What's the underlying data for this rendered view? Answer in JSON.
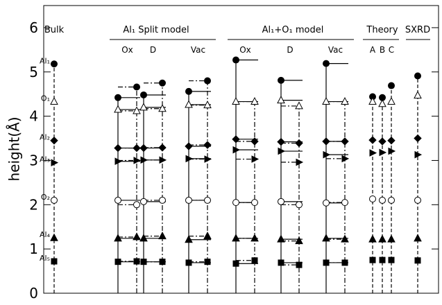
{
  "chart_data": {
    "type": "scatter",
    "ylabel": "height(Å)",
    "ylim": [
      0,
      6.5
    ],
    "yticks": [
      0,
      1,
      2,
      3,
      4,
      5,
      6
    ],
    "layers": [
      "Al₁",
      "O₁",
      "Al₂",
      "Al₃",
      "O₂",
      "Al₄",
      "Al₅"
    ],
    "markers": [
      "filled-circle",
      "open-triangle",
      "filled-diamond",
      "filled-right-triangle",
      "open-circle",
      "filled-triangle",
      "filled-square"
    ],
    "groups": [
      {
        "title": "Bulk",
        "sets": [
          {
            "lines": [
              {
                "style": "dashed",
                "values": [
                  5.18,
                  4.33,
                  3.45,
                  2.95,
                  2.1,
                  1.25,
                  0.72
                ]
              }
            ]
          }
        ]
      },
      {
        "title": "Al₁ Split model",
        "sets": [
          {
            "label": "Ox",
            "lines": [
              {
                "style": "solid",
                "values": [
                  4.42,
                  4.15,
                  3.28,
                  2.98,
                  2.1,
                  1.24,
                  0.71
                ]
              },
              {
                "style": "dashdot",
                "values": [
                  4.66,
                  4.12,
                  3.28,
                  3.0,
                  2.0,
                  1.27,
                  0.72
                ]
              }
            ]
          },
          {
            "label": "D",
            "lines": [
              {
                "style": "solid",
                "values": [
                  4.48,
                  4.2,
                  3.28,
                  3.01,
                  2.07,
                  1.24,
                  0.71
                ]
              },
              {
                "style": "dashdot",
                "values": [
                  4.75,
                  4.17,
                  3.29,
                  3.01,
                  2.1,
                  1.29,
                  0.71
                ]
              }
            ]
          },
          {
            "label": "Vac",
            "lines": [
              {
                "style": "solid",
                "values": [
                  4.56,
                  4.26,
                  3.32,
                  3.04,
                  2.1,
                  1.21,
                  0.69
                ]
              },
              {
                "style": "dashdot",
                "values": [
                  4.8,
                  4.25,
                  3.35,
                  3.03,
                  2.1,
                  1.29,
                  0.71
                ]
              }
            ]
          }
        ]
      },
      {
        "title": "Al₁+O₁ model",
        "sets": [
          {
            "label": "Ox",
            "lines": [
              {
                "style": "solid",
                "values": [
                  5.27,
                  4.33,
                  3.48,
                  3.24,
                  2.05,
                  1.24,
                  0.67
                ]
              },
              {
                "style": "dashdot",
                "values": [
                  null,
                  4.33,
                  3.43,
                  3.03,
                  2.05,
                  1.24,
                  0.74
                ]
              }
            ]
          },
          {
            "label": "D",
            "lines": [
              {
                "style": "solid",
                "values": [
                  4.81,
                  4.36,
                  3.42,
                  3.21,
                  2.07,
                  1.22,
                  0.69
                ]
              },
              {
                "style": "dashdot",
                "values": [
                  null,
                  4.23,
                  3.39,
                  2.96,
                  2.0,
                  1.18,
                  0.64
                ]
              }
            ]
          },
          {
            "label": "Vac",
            "lines": [
              {
                "style": "solid",
                "values": [
                  5.19,
                  4.33,
                  3.43,
                  3.13,
                  2.04,
                  1.24,
                  0.69
                ]
              },
              {
                "style": "dashdot",
                "values": [
                  null,
                  4.33,
                  3.43,
                  3.04,
                  2.05,
                  1.22,
                  0.69
                ]
              }
            ]
          }
        ]
      },
      {
        "title": "Theory",
        "sets": [
          {
            "label": "A",
            "lines": [
              {
                "style": "dashed",
                "values": [
                  4.44,
                  4.33,
                  3.46,
                  3.17,
                  2.13,
                  1.22,
                  0.75
                ]
              }
            ]
          },
          {
            "label": "B",
            "lines": [
              {
                "style": "dashed",
                "values": [
                  4.42,
                  4.28,
                  3.43,
                  3.18,
                  2.1,
                  1.22,
                  0.75
                ]
              }
            ]
          },
          {
            "label": "C",
            "lines": [
              {
                "style": "dashed",
                "values": [
                  4.69,
                  4.33,
                  3.45,
                  3.21,
                  2.1,
                  1.22,
                  0.75
                ]
              }
            ]
          }
        ]
      },
      {
        "title": "SXRD",
        "sets": [
          {
            "lines": [
              {
                "style": "dashed",
                "values": [
                  4.91,
                  4.47,
                  3.5,
                  3.13,
                  2.1,
                  1.24,
                  0.74
                ]
              }
            ]
          }
        ]
      }
    ]
  }
}
